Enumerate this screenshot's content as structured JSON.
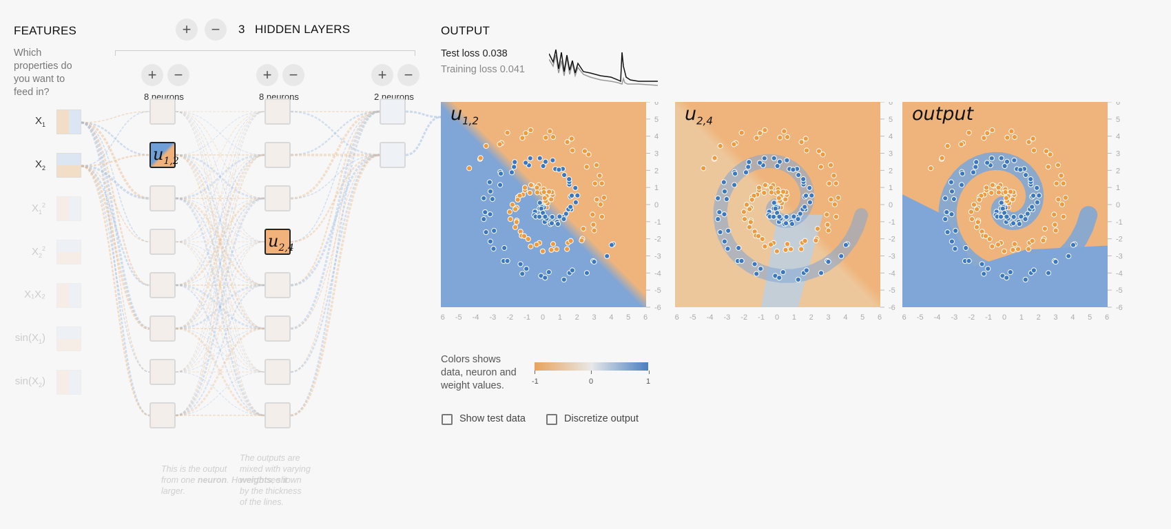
{
  "features": {
    "title": "FEATURES",
    "description": [
      "Which",
      "properties do",
      "you want to",
      "feed in?"
    ],
    "items": [
      {
        "id": "x1",
        "name": "X",
        "sub": "1",
        "sup": "",
        "active": true
      },
      {
        "id": "x2",
        "name": "X",
        "sub": "2",
        "sup": "",
        "active": true
      },
      {
        "id": "x1sq",
        "name": "X",
        "sub": "1",
        "sup": "2",
        "active": false
      },
      {
        "id": "x2sq",
        "name": "X",
        "sub": "2",
        "sup": "2",
        "active": false
      },
      {
        "id": "x1x2",
        "name": "X₁X₂",
        "sub": "",
        "sup": "",
        "active": false
      },
      {
        "id": "sinx1",
        "name": "sin(X",
        "sub": "1",
        "sup": "",
        "close": ")",
        "active": false
      },
      {
        "id": "sinx2",
        "name": "sin(X",
        "sub": "2",
        "sup": "",
        "close": ")",
        "active": false
      }
    ]
  },
  "hidden_layers": {
    "count": "3",
    "label": "HIDDEN LAYERS",
    "plus_label": "+",
    "minus_label": "−",
    "layers": [
      {
        "neurons_label": "8 neurons",
        "plus": "+",
        "minus": "−"
      },
      {
        "neurons_label": "8 neurons",
        "plus": "+",
        "minus": "−"
      },
      {
        "neurons_label": "2 neurons",
        "plus": "+",
        "minus": "−"
      }
    ]
  },
  "node_labels": {
    "u12": {
      "base": "u",
      "sub": "1,2"
    },
    "u24": {
      "base": "u",
      "sub": "2,4"
    }
  },
  "annotations": {
    "neuron": [
      "This is the output",
      "from one ",
      "neuron",
      ". Hover to see it",
      "larger."
    ],
    "weights": [
      "The outputs are",
      "mixed with varying",
      "weights",
      ", shown",
      "by the thickness",
      "of the lines."
    ]
  },
  "output": {
    "title": "OUTPUT",
    "test_loss_label": "Test loss",
    "test_loss": "0.038",
    "training_loss_label": "Training loss",
    "training_loss": "0.041"
  },
  "plots": [
    {
      "label_base": "u",
      "label_sub": "1,2"
    },
    {
      "label_base": "u",
      "label_sub": "2,4"
    },
    {
      "label_base": "output",
      "label_sub": ""
    }
  ],
  "axis_ticks": [
    "-6",
    "-5",
    "-4",
    "-3",
    "-2",
    "-1",
    "0",
    "1",
    "2",
    "3",
    "4",
    "5",
    "6"
  ],
  "legend": {
    "text": [
      "Colors shows",
      "data, neuron and",
      "weight values."
    ],
    "min_label": "-1",
    "mid_label": "0",
    "max_label": "1",
    "colors": {
      "negative": "#e8a35b",
      "neutral": "#e8e8e8",
      "positive": "#4a7fc1"
    }
  },
  "options": {
    "show_test_data": "Show test data",
    "discretize_output": "Discretize output"
  },
  "colors": {
    "orange": "#eeb57a",
    "blue": "#79a3d3",
    "dot_orange": "#ee9a3d",
    "dot_blue": "#3b78bf"
  }
}
